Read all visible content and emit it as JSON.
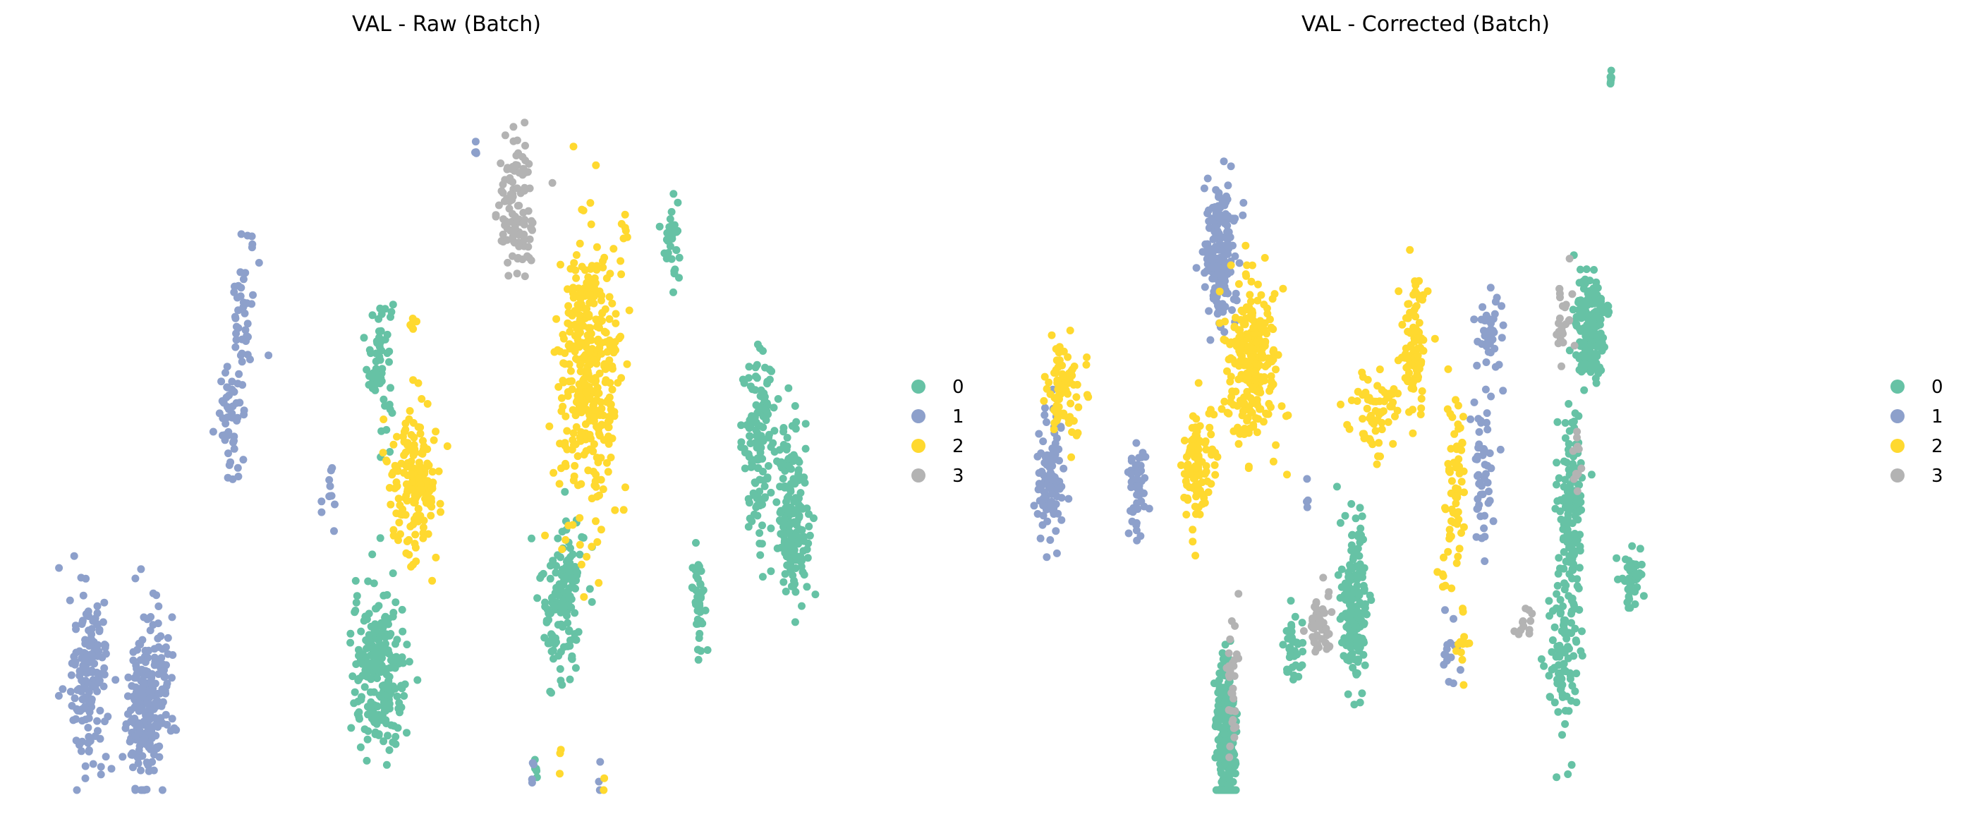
{
  "chart_data": [
    {
      "type": "scatter",
      "title": "VAL - Raw (Batch)",
      "xlabel": "",
      "ylabel": "",
      "grid": false,
      "axes_visible": false,
      "legend_position": "right",
      "legend": [
        "0",
        "1",
        "2",
        "3"
      ],
      "colors": {
        "0": "#66c2a5",
        "1": "#8da0cb",
        "2": "#ffd92f",
        "3": "#b3b3b3"
      },
      "clusters": [
        {
          "batch": "1",
          "center": [
            0.7,
            0.15
          ],
          "spread": [
            0.09,
            0.05
          ],
          "count": 160
        },
        {
          "batch": "1",
          "center": [
            1.65,
            0.15
          ],
          "spread": [
            0.1,
            0.05
          ],
          "count": 120
        },
        {
          "batch": "1",
          "center": [
            1.45,
            0.1
          ],
          "spread": [
            0.06,
            0.04
          ],
          "count": 110
        },
        {
          "batch": "1",
          "center": [
            2.8,
            0.52
          ],
          "spread": [
            0.07,
            0.04
          ],
          "count": 50
        },
        {
          "batch": "1",
          "center": [
            3.0,
            0.67
          ],
          "spread": [
            0.06,
            0.04
          ],
          "count": 40
        },
        {
          "batch": "1",
          "center": [
            4.25,
            0.4
          ],
          "spread": [
            0.03,
            0.02
          ],
          "count": 12
        },
        {
          "batch": "1",
          "center": [
            6.4,
            0.89
          ],
          "spread": [
            0.01,
            0.005
          ],
          "count": 4
        },
        {
          "batch": "1",
          "center": [
            7.25,
            0.02
          ],
          "spread": [
            0.01,
            0.01
          ],
          "count": 4
        },
        {
          "batch": "1",
          "center": [
            8.25,
            0.02
          ],
          "spread": [
            0.01,
            0.01
          ],
          "count": 3
        },
        {
          "batch": "3",
          "center": [
            7.0,
            0.81
          ],
          "spread": [
            0.09,
            0.04
          ],
          "count": 110
        },
        {
          "batch": "2",
          "center": [
            8.1,
            0.58
          ],
          "spread": [
            0.14,
            0.08
          ],
          "count": 380
        },
        {
          "batch": "2",
          "center": [
            5.5,
            0.43
          ],
          "spread": [
            0.12,
            0.04
          ],
          "count": 170
        },
        {
          "batch": "2",
          "center": [
            8.6,
            0.78
          ],
          "spread": [
            0.02,
            0.01
          ],
          "count": 5
        },
        {
          "batch": "2",
          "center": [
            5.5,
            0.65
          ],
          "spread": [
            0.02,
            0.01
          ],
          "count": 6
        },
        {
          "batch": "2",
          "center": [
            7.65,
            0.04
          ],
          "spread": [
            0.01,
            0.01
          ],
          "count": 3
        },
        {
          "batch": "2",
          "center": [
            8.3,
            0.01
          ],
          "spread": [
            0.01,
            0.01
          ],
          "count": 2
        },
        {
          "batch": "0",
          "center": [
            5.0,
            0.6
          ],
          "spread": [
            0.06,
            0.04
          ],
          "count": 60
        },
        {
          "batch": "0",
          "center": [
            9.3,
            0.77
          ],
          "spread": [
            0.03,
            0.03
          ],
          "count": 35
        },
        {
          "batch": "0",
          "center": [
            10.6,
            0.48
          ],
          "spread": [
            0.08,
            0.05
          ],
          "count": 130
        },
        {
          "batch": "0",
          "center": [
            11.1,
            0.38
          ],
          "spread": [
            0.07,
            0.05
          ],
          "count": 180
        },
        {
          "batch": "0",
          "center": [
            7.7,
            0.27
          ],
          "spread": [
            0.1,
            0.05
          ],
          "count": 140
        },
        {
          "batch": "0",
          "center": [
            9.7,
            0.27
          ],
          "spread": [
            0.03,
            0.03
          ],
          "count": 40
        },
        {
          "batch": "0",
          "center": [
            5.0,
            0.16
          ],
          "spread": [
            0.13,
            0.05
          ],
          "count": 220
        },
        {
          "batch": "0",
          "center": [
            7.3,
            0.03
          ],
          "spread": [
            0.01,
            0.01
          ],
          "count": 6
        }
      ]
    },
    {
      "type": "scatter",
      "title": "VAL - Corrected (Batch)",
      "xlabel": "",
      "ylabel": "",
      "grid": false,
      "axes_visible": false,
      "legend_position": "right",
      "legend": [
        "0",
        "1",
        "2",
        "3"
      ],
      "colors": {
        "0": "#66c2a5",
        "1": "#8da0cb",
        "2": "#ffd92f",
        "3": "#b3b3b3"
      },
      "clusters": [
        {
          "batch": "1",
          "center": [
            2.9,
            0.75
          ],
          "spread": [
            0.08,
            0.04
          ],
          "count": 180
        },
        {
          "batch": "1",
          "center": [
            0.4,
            0.43
          ],
          "spread": [
            0.07,
            0.04
          ],
          "count": 100
        },
        {
          "batch": "1",
          "center": [
            1.7,
            0.42
          ],
          "spread": [
            0.05,
            0.03
          ],
          "count": 50
        },
        {
          "batch": "1",
          "center": [
            6.9,
            0.64
          ],
          "spread": [
            0.06,
            0.03
          ],
          "count": 40
        },
        {
          "batch": "1",
          "center": [
            6.8,
            0.44
          ],
          "spread": [
            0.05,
            0.05
          ],
          "count": 50
        },
        {
          "batch": "1",
          "center": [
            6.3,
            0.2
          ],
          "spread": [
            0.03,
            0.02
          ],
          "count": 15
        },
        {
          "batch": "1",
          "center": [
            4.2,
            0.42
          ],
          "spread": [
            0.01,
            0.01
          ],
          "count": 4
        },
        {
          "batch": "2",
          "center": [
            3.4,
            0.6
          ],
          "spread": [
            0.12,
            0.05
          ],
          "count": 260
        },
        {
          "batch": "2",
          "center": [
            0.6,
            0.56
          ],
          "spread": [
            0.08,
            0.03
          ],
          "count": 80
        },
        {
          "batch": "2",
          "center": [
            2.6,
            0.45
          ],
          "spread": [
            0.07,
            0.03
          ],
          "count": 100
        },
        {
          "batch": "2",
          "center": [
            5.8,
            0.62
          ],
          "spread": [
            0.07,
            0.04
          ],
          "count": 100
        },
        {
          "batch": "2",
          "center": [
            6.4,
            0.43
          ],
          "spread": [
            0.05,
            0.05
          ],
          "count": 60
        },
        {
          "batch": "2",
          "center": [
            5.2,
            0.52
          ],
          "spread": [
            0.12,
            0.03
          ],
          "count": 60
        },
        {
          "batch": "2",
          "center": [
            6.2,
            0.3
          ],
          "spread": [
            0.02,
            0.01
          ],
          "count": 6
        },
        {
          "batch": "2",
          "center": [
            6.5,
            0.2
          ],
          "spread": [
            0.03,
            0.02
          ],
          "count": 12
        },
        {
          "batch": "0",
          "center": [
            8.4,
            0.64
          ],
          "spread": [
            0.07,
            0.03
          ],
          "count": 170
        },
        {
          "batch": "0",
          "center": [
            8.1,
            0.38
          ],
          "spread": [
            0.06,
            0.06
          ],
          "count": 150
        },
        {
          "batch": "0",
          "center": [
            8.0,
            0.18
          ],
          "spread": [
            0.07,
            0.05
          ],
          "count": 90
        },
        {
          "batch": "0",
          "center": [
            9.0,
            0.29
          ],
          "spread": [
            0.05,
            0.02
          ],
          "count": 45
        },
        {
          "batch": "0",
          "center": [
            4.9,
            0.25
          ],
          "spread": [
            0.06,
            0.05
          ],
          "count": 170
        },
        {
          "batch": "0",
          "center": [
            3.0,
            0.06
          ],
          "spread": [
            0.05,
            0.05
          ],
          "count": 240
        },
        {
          "batch": "0",
          "center": [
            4.0,
            0.2
          ],
          "spread": [
            0.05,
            0.02
          ],
          "count": 40
        },
        {
          "batch": "0",
          "center": [
            8.7,
            0.99
          ],
          "spread": [
            0.005,
            0.005
          ],
          "count": 6
        },
        {
          "batch": "3",
          "center": [
            8.0,
            0.66
          ],
          "spread": [
            0.05,
            0.03
          ],
          "count": 25
        },
        {
          "batch": "3",
          "center": [
            3.1,
            0.14
          ],
          "spread": [
            0.03,
            0.04
          ],
          "count": 30
        },
        {
          "batch": "3",
          "center": [
            4.4,
            0.23
          ],
          "spread": [
            0.06,
            0.02
          ],
          "count": 45
        },
        {
          "batch": "3",
          "center": [
            7.4,
            0.23
          ],
          "spread": [
            0.04,
            0.01
          ],
          "count": 12
        },
        {
          "batch": "3",
          "center": [
            8.2,
            0.47
          ],
          "spread": [
            0.02,
            0.03
          ],
          "count": 12
        }
      ]
    }
  ]
}
